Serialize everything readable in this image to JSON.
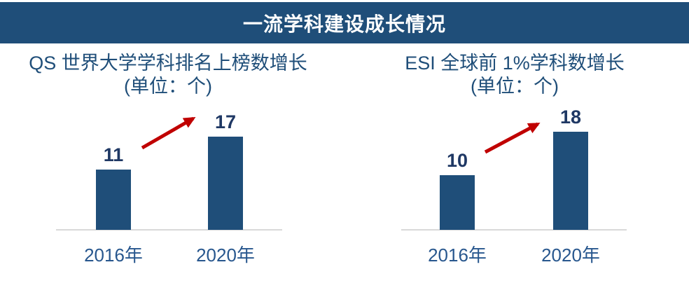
{
  "banner": {
    "title": "一流学科建设成长情况"
  },
  "colors": {
    "banner_bg": "#1F4E79",
    "banner_text": "#FFFFFF",
    "bar": "#1F4E79",
    "title_text": "#1F4E79",
    "value_text": "#1F3864",
    "cat_text": "#28578E",
    "axis_line": "#D9D9D9",
    "arrow": "#C00000"
  },
  "chart_data": [
    {
      "type": "bar",
      "title": "QS 世界大学学科排名上榜数增长",
      "subtitle": "(单位：个)",
      "categories": [
        "2016年",
        "2020年"
      ],
      "values": [
        11,
        17
      ],
      "ylim": [
        0,
        18
      ],
      "grid": false,
      "legend": "none",
      "annotation": "red-upward-trend-arrow between bars"
    },
    {
      "type": "bar",
      "title": "ESI 全球前 1%学科数增长",
      "subtitle": "(单位：个)",
      "categories": [
        "2016年",
        "2020年"
      ],
      "values": [
        10,
        18
      ],
      "ylim": [
        0,
        18
      ],
      "grid": false,
      "legend": "none",
      "annotation": "red-upward-trend-arrow between bars"
    }
  ]
}
